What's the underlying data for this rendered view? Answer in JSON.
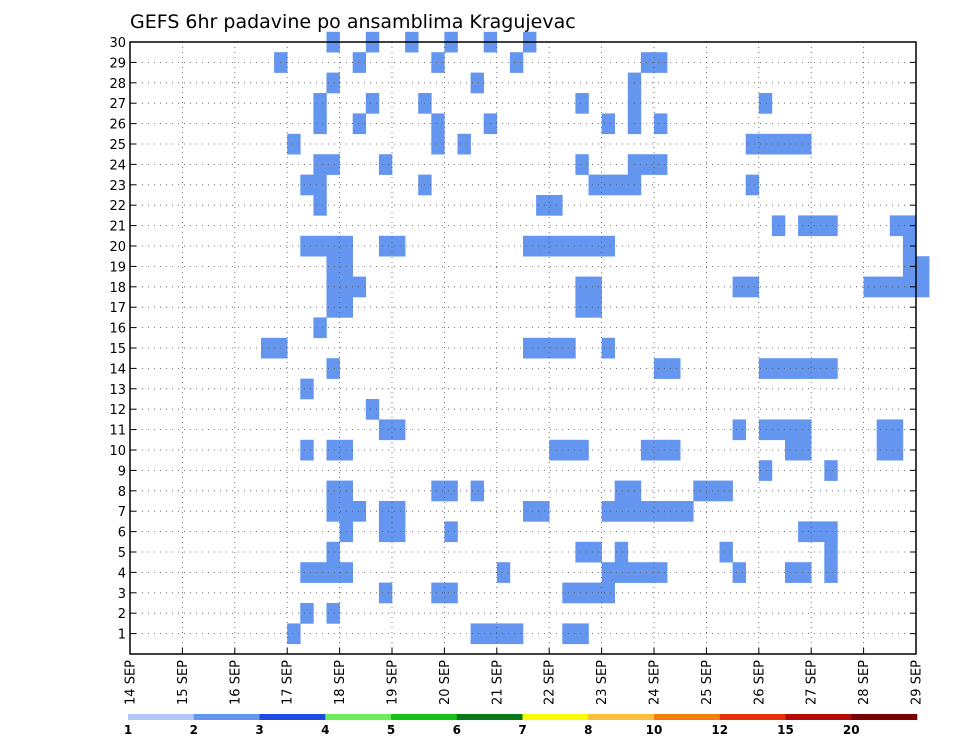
{
  "chart_data": {
    "type": "heatmap",
    "title": "GEFS 6hr padavine po ansamblima Kragujevac",
    "xlabel": "",
    "ylabel": "",
    "x_ticks": [
      "14 SEP",
      "15 SEP",
      "16 SEP",
      "17 SEP",
      "18 SEP",
      "19 SEP",
      "20 SEP",
      "21 SEP",
      "22 SEP",
      "23 SEP",
      "24 SEP",
      "25 SEP",
      "26 SEP",
      "27 SEP",
      "28 SEP",
      "29 SEP"
    ],
    "y_ticks": [
      "1",
      "2",
      "3",
      "4",
      "5",
      "6",
      "7",
      "8",
      "9",
      "10",
      "11",
      "12",
      "13",
      "14",
      "15",
      "16",
      "17",
      "18",
      "19",
      "20",
      "21",
      "22",
      "23",
      "24",
      "25",
      "26",
      "27",
      "28",
      "29",
      "30"
    ],
    "xlim_days": [
      0,
      15
    ],
    "time_step_hours": 6,
    "grid": true,
    "legend_position": "bottom",
    "levels": [
      {
        "label": "1",
        "color": "#b4c8f5"
      },
      {
        "label": "2",
        "color": "#6496f0"
      },
      {
        "label": "3",
        "color": "#1e4be1"
      },
      {
        "label": "4",
        "color": "#6eeb5a"
      },
      {
        "label": "5",
        "color": "#14c314"
      },
      {
        "label": "6",
        "color": "#0a7814"
      },
      {
        "label": "7",
        "color": "#fafa00"
      },
      {
        "label": "8",
        "color": "#fabe3c"
      },
      {
        "label": "10",
        "color": "#f57d0a"
      },
      {
        "label": "12",
        "color": "#e6320a"
      },
      {
        "label": "15",
        "color": "#b40a0a"
      },
      {
        "label": "20",
        "color": "#780000"
      }
    ],
    "cells": [
      [
        30,
        3.75,
        1
      ],
      [
        30,
        4.5,
        1
      ],
      [
        30,
        5.25,
        1
      ],
      [
        30,
        6,
        1
      ],
      [
        30,
        6.75,
        1
      ],
      [
        30,
        7.5,
        1
      ],
      [
        29,
        2.75,
        1
      ],
      [
        29,
        4.25,
        1
      ],
      [
        29,
        5.75,
        1
      ],
      [
        29,
        7.25,
        1
      ],
      [
        29,
        9.75,
        1
      ],
      [
        29,
        10,
        1
      ],
      [
        28,
        3.75,
        1
      ],
      [
        28,
        6.5,
        1
      ],
      [
        28,
        9.5,
        1
      ],
      [
        27,
        3.5,
        1
      ],
      [
        27,
        4.5,
        1
      ],
      [
        27,
        5.5,
        1
      ],
      [
        27,
        8.5,
        1
      ],
      [
        27,
        9.5,
        1
      ],
      [
        27,
        12,
        1
      ],
      [
        26,
        3.5,
        1
      ],
      [
        26,
        4.25,
        1
      ],
      [
        26,
        5.75,
        1
      ],
      [
        26,
        6.75,
        1
      ],
      [
        26,
        9,
        1
      ],
      [
        26,
        9.5,
        1
      ],
      [
        26,
        10,
        1
      ],
      [
        25,
        3,
        1
      ],
      [
        25,
        5.75,
        1
      ],
      [
        25,
        6.25,
        1
      ],
      [
        25,
        11.75,
        1
      ],
      [
        25,
        12,
        1
      ],
      [
        25,
        12.25,
        1
      ],
      [
        25,
        12.5,
        1
      ],
      [
        25,
        12.75,
        1
      ],
      [
        24,
        3.5,
        1
      ],
      [
        24,
        3.75,
        1
      ],
      [
        24,
        4.75,
        1
      ],
      [
        24,
        8.5,
        1
      ],
      [
        24,
        9.5,
        1
      ],
      [
        24,
        9.75,
        1
      ],
      [
        24,
        10,
        1
      ],
      [
        23,
        3.25,
        1
      ],
      [
        23,
        3.5,
        1
      ],
      [
        23,
        5.5,
        1
      ],
      [
        23,
        8.75,
        1
      ],
      [
        23,
        9,
        1
      ],
      [
        23,
        9.25,
        1
      ],
      [
        23,
        9.5,
        1
      ],
      [
        23,
        11.75,
        1
      ],
      [
        22,
        3.5,
        1
      ],
      [
        22,
        7.75,
        1
      ],
      [
        22,
        8,
        1
      ],
      [
        21,
        12.25,
        1
      ],
      [
        21,
        12.75,
        1
      ],
      [
        21,
        13,
        1
      ],
      [
        21,
        13.25,
        1
      ],
      [
        21,
        14.5,
        1
      ],
      [
        21,
        14.75,
        1
      ],
      [
        20,
        3.25,
        1
      ],
      [
        20,
        3.5,
        1
      ],
      [
        20,
        3.75,
        1
      ],
      [
        20,
        4,
        1
      ],
      [
        20,
        4.75,
        1
      ],
      [
        20,
        5,
        1
      ],
      [
        20,
        7.5,
        1
      ],
      [
        20,
        7.75,
        1
      ],
      [
        20,
        8,
        1
      ],
      [
        20,
        8.25,
        1
      ],
      [
        20,
        8.5,
        1
      ],
      [
        20,
        8.75,
        1
      ],
      [
        20,
        9,
        1
      ],
      [
        20,
        14.75,
        1
      ],
      [
        19,
        3.75,
        1
      ],
      [
        19,
        4,
        1
      ],
      [
        19,
        14.75,
        1
      ],
      [
        19,
        15,
        1
      ],
      [
        18,
        3.75,
        1
      ],
      [
        18,
        4,
        1
      ],
      [
        18,
        4.25,
        1
      ],
      [
        18,
        8.5,
        1
      ],
      [
        18,
        8.75,
        1
      ],
      [
        18,
        11.5,
        1
      ],
      [
        18,
        11.75,
        1
      ],
      [
        18,
        14,
        1
      ],
      [
        18,
        14.25,
        1
      ],
      [
        18,
        14.5,
        1
      ],
      [
        18,
        14.75,
        1
      ],
      [
        18,
        15,
        1
      ],
      [
        17,
        3.75,
        1
      ],
      [
        17,
        4,
        1
      ],
      [
        17,
        8.5,
        1
      ],
      [
        17,
        8.75,
        1
      ],
      [
        16,
        3.5,
        1
      ],
      [
        15,
        2.5,
        1
      ],
      [
        15,
        2.75,
        1
      ],
      [
        15,
        7.5,
        1
      ],
      [
        15,
        7.75,
        1
      ],
      [
        15,
        8,
        1
      ],
      [
        15,
        8.25,
        1
      ],
      [
        15,
        9,
        1
      ],
      [
        14,
        3.75,
        1
      ],
      [
        14,
        10,
        1
      ],
      [
        14,
        10.25,
        1
      ],
      [
        14,
        12,
        1
      ],
      [
        14,
        12.25,
        1
      ],
      [
        14,
        12.5,
        1
      ],
      [
        14,
        12.75,
        1
      ],
      [
        14,
        13,
        1
      ],
      [
        14,
        13.25,
        1
      ],
      [
        13,
        3.25,
        1
      ],
      [
        12,
        4.5,
        1
      ],
      [
        11,
        4.75,
        1
      ],
      [
        11,
        5,
        1
      ],
      [
        11,
        11.5,
        1
      ],
      [
        11,
        12,
        1
      ],
      [
        11,
        12.25,
        1
      ],
      [
        11,
        12.5,
        1
      ],
      [
        11,
        12.75,
        1
      ],
      [
        11,
        14.25,
        1
      ],
      [
        11,
        14.5,
        1
      ],
      [
        10,
        3.25,
        1
      ],
      [
        10,
        3.75,
        1
      ],
      [
        10,
        4,
        1
      ],
      [
        10,
        8,
        1
      ],
      [
        10,
        8.25,
        1
      ],
      [
        10,
        8.5,
        1
      ],
      [
        10,
        9.75,
        1
      ],
      [
        10,
        10,
        1
      ],
      [
        10,
        10.25,
        1
      ],
      [
        10,
        12.5,
        1
      ],
      [
        10,
        12.75,
        1
      ],
      [
        10,
        14.25,
        1
      ],
      [
        10,
        14.5,
        1
      ],
      [
        9,
        12,
        1
      ],
      [
        9,
        13.25,
        1
      ],
      [
        8,
        3.75,
        1
      ],
      [
        8,
        4,
        1
      ],
      [
        8,
        5.75,
        1
      ],
      [
        8,
        6,
        1
      ],
      [
        8,
        6.5,
        1
      ],
      [
        8,
        9.25,
        1
      ],
      [
        8,
        9.5,
        1
      ],
      [
        8,
        10.75,
        1
      ],
      [
        8,
        11,
        1
      ],
      [
        8,
        11.25,
        1
      ],
      [
        7,
        3.75,
        1
      ],
      [
        7,
        4,
        1
      ],
      [
        7,
        4.25,
        1
      ],
      [
        7,
        4.75,
        1
      ],
      [
        7,
        5,
        1
      ],
      [
        7,
        7.5,
        1
      ],
      [
        7,
        7.75,
        1
      ],
      [
        7,
        9,
        1
      ],
      [
        7,
        9.25,
        1
      ],
      [
        7,
        9.5,
        1
      ],
      [
        7,
        9.75,
        1
      ],
      [
        7,
        10,
        1
      ],
      [
        7,
        10.25,
        1
      ],
      [
        7,
        10.5,
        1
      ],
      [
        6,
        4,
        1
      ],
      [
        6,
        4.75,
        1
      ],
      [
        6,
        5,
        1
      ],
      [
        6,
        6,
        1
      ],
      [
        6,
        12.75,
        1
      ],
      [
        6,
        13,
        1
      ],
      [
        6,
        13.25,
        1
      ],
      [
        5,
        3.75,
        1
      ],
      [
        5,
        8.5,
        1
      ],
      [
        5,
        8.75,
        1
      ],
      [
        5,
        9.25,
        1
      ],
      [
        5,
        11.25,
        1
      ],
      [
        5,
        13.25,
        1
      ],
      [
        4,
        3.25,
        1
      ],
      [
        4,
        3.5,
        1
      ],
      [
        4,
        3.75,
        1
      ],
      [
        4,
        4,
        1
      ],
      [
        4,
        7,
        1
      ],
      [
        4,
        9,
        1
      ],
      [
        4,
        9.25,
        1
      ],
      [
        4,
        9.5,
        1
      ],
      [
        4,
        9.75,
        1
      ],
      [
        4,
        10,
        1
      ],
      [
        4,
        11.5,
        1
      ],
      [
        4,
        12.5,
        1
      ],
      [
        4,
        12.75,
        1
      ],
      [
        4,
        13.25,
        1
      ],
      [
        3,
        4.75,
        1
      ],
      [
        3,
        5.75,
        1
      ],
      [
        3,
        6,
        1
      ],
      [
        3,
        8.25,
        1
      ],
      [
        3,
        8.5,
        1
      ],
      [
        3,
        8.75,
        1
      ],
      [
        3,
        9,
        1
      ],
      [
        2,
        3.25,
        1
      ],
      [
        2,
        3.75,
        1
      ],
      [
        1,
        3,
        1
      ],
      [
        1,
        6.5,
        1
      ],
      [
        1,
        6.75,
        1
      ],
      [
        1,
        7,
        1
      ],
      [
        1,
        7.25,
        1
      ],
      [
        1,
        8.25,
        1
      ],
      [
        1,
        8.5,
        1
      ]
    ]
  }
}
